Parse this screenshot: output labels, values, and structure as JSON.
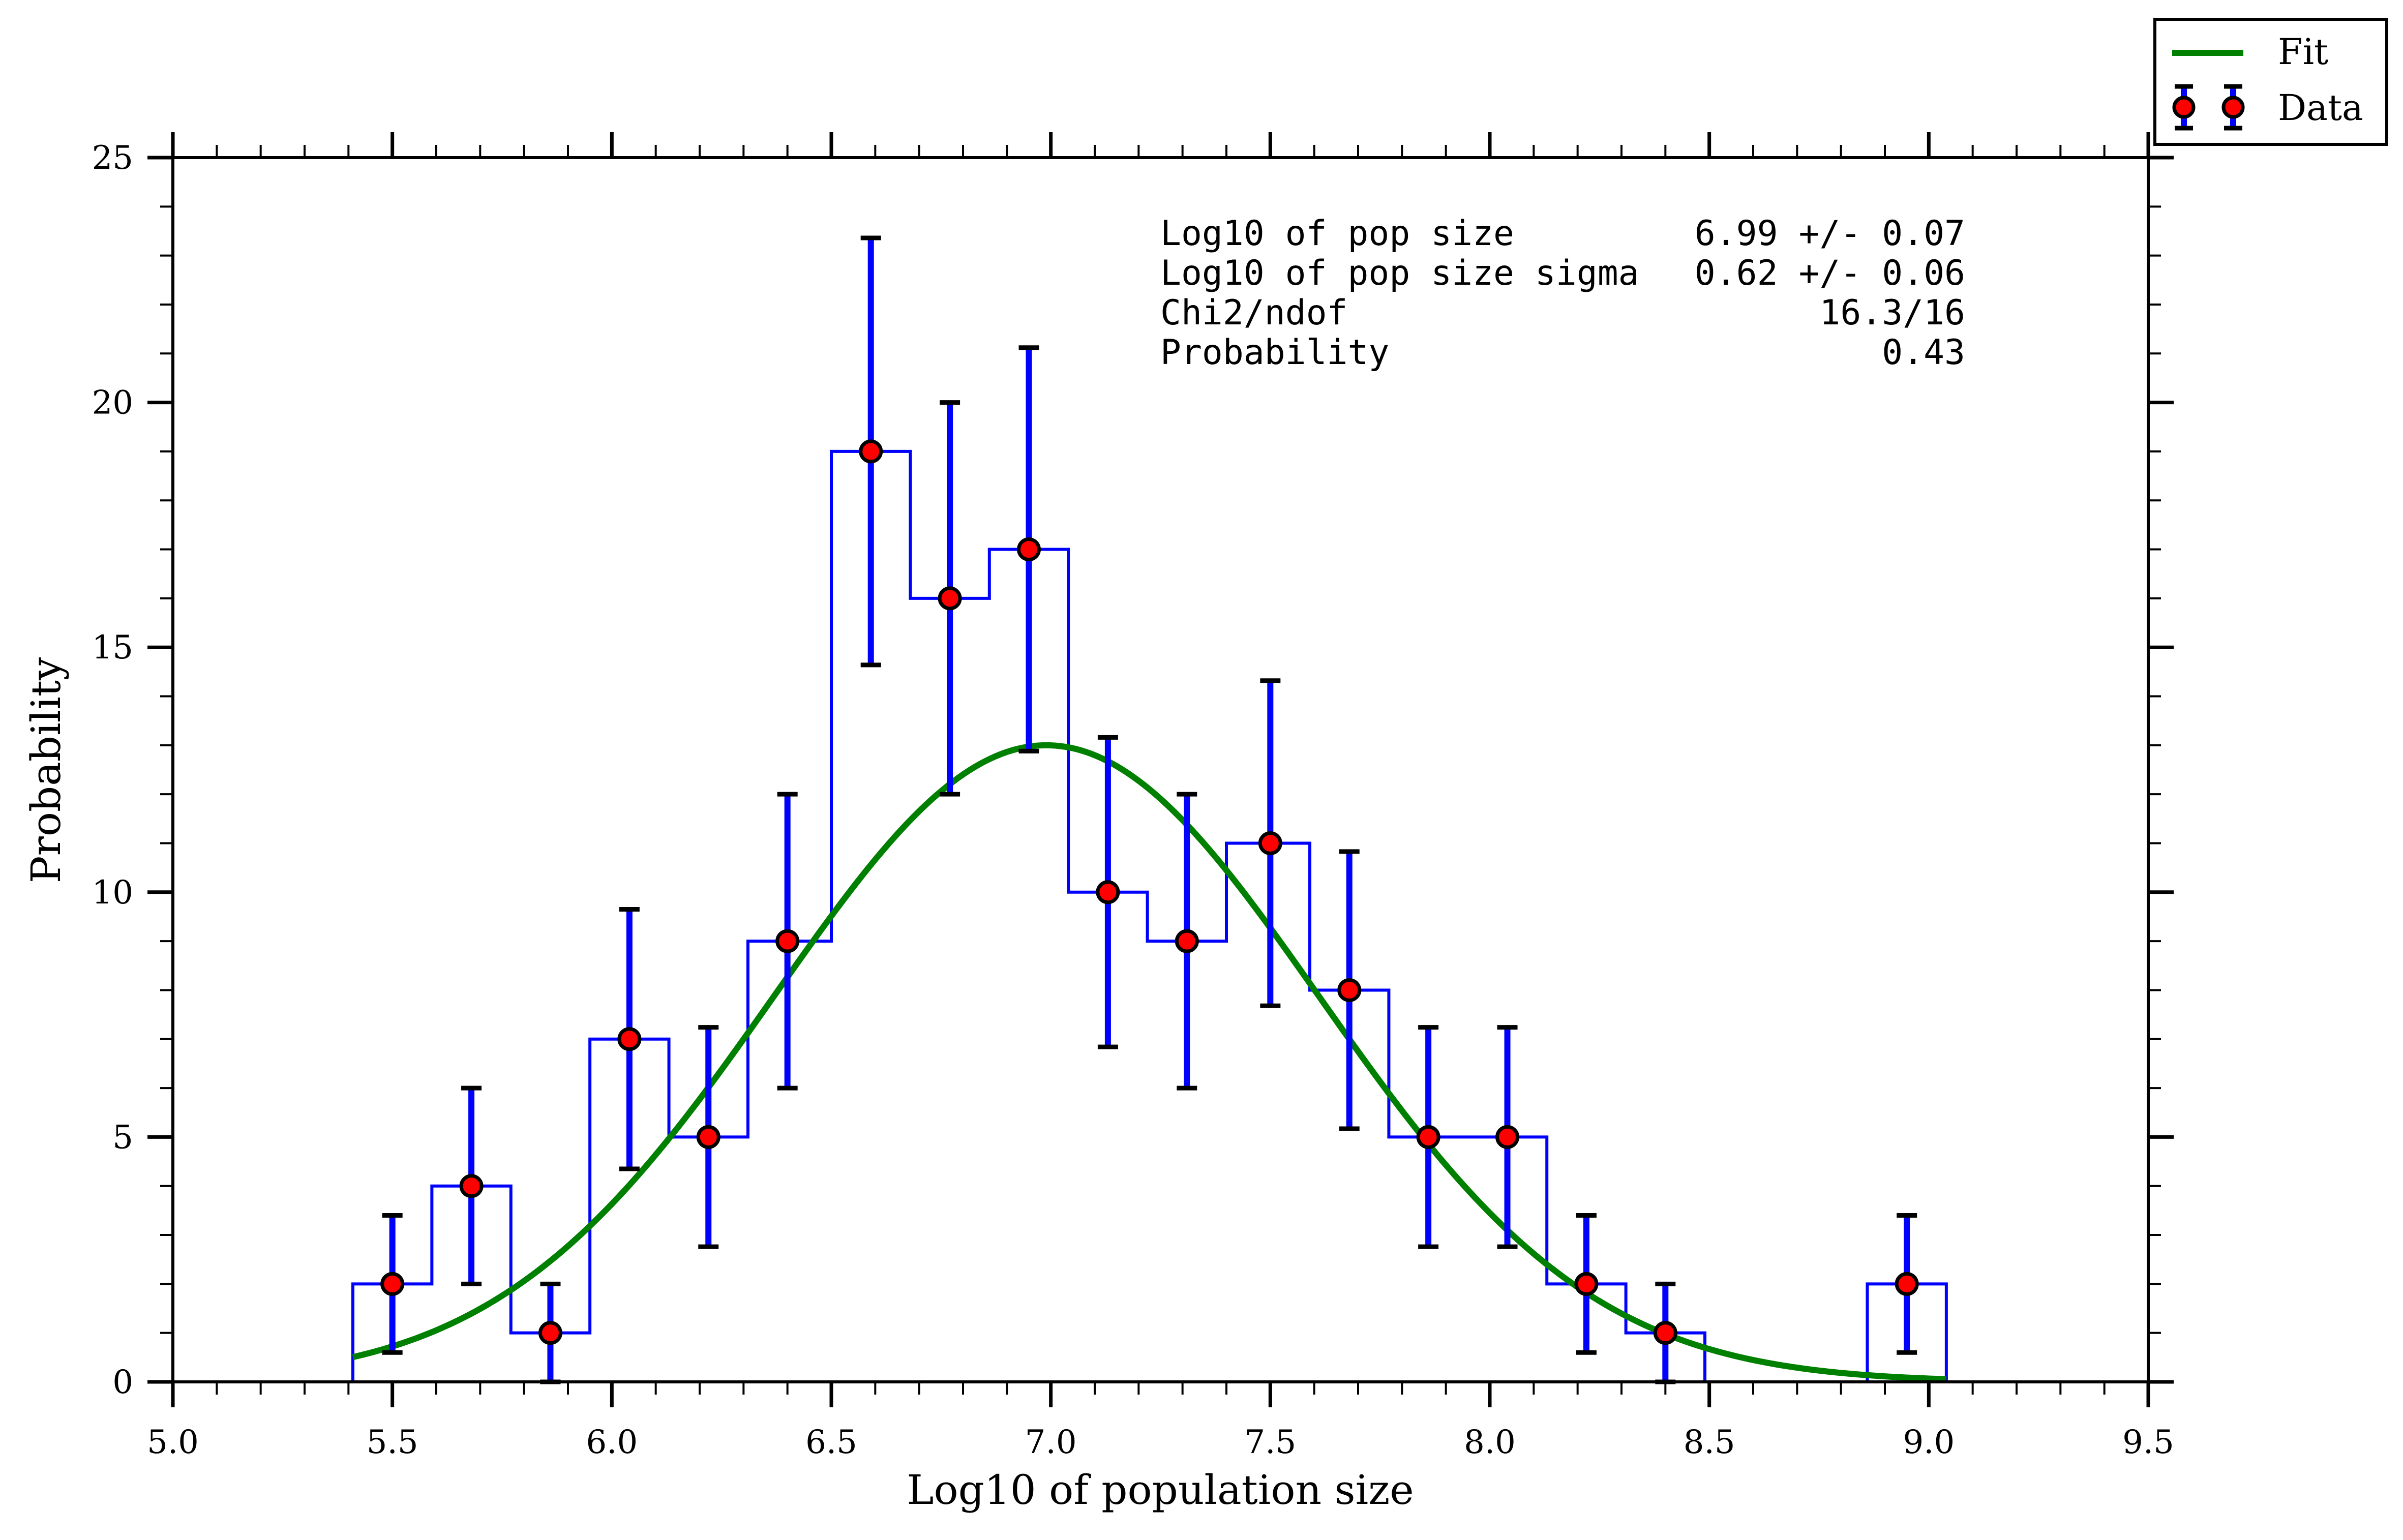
{
  "chart_data": {
    "type": "histogram",
    "xlabel": "Log10 of population size",
    "ylabel": "Probability",
    "xlim": [
      5.0,
      9.5
    ],
    "ylim": [
      0,
      25
    ],
    "x_ticks": [
      "5.0",
      "5.5",
      "6.0",
      "6.5",
      "7.0",
      "7.5",
      "8.0",
      "8.5",
      "9.0",
      "9.5"
    ],
    "y_ticks": [
      "0",
      "5",
      "10",
      "15",
      "20",
      "25"
    ],
    "legend": {
      "placement": "top-right",
      "entries": [
        {
          "label": "Fit",
          "kind": "line",
          "color": "#008000"
        },
        {
          "label": "Data",
          "kind": "errorbar-point",
          "color": "#ff0000"
        }
      ]
    },
    "histogram": {
      "color": "#0000ff",
      "bin_edges": [
        5.41,
        5.59,
        5.77,
        5.95,
        6.13,
        6.31,
        6.5,
        6.68,
        6.86,
        7.04,
        7.22,
        7.4,
        7.59,
        7.77,
        7.95,
        8.13,
        8.31,
        8.49,
        8.67,
        8.86,
        9.04
      ],
      "counts": [
        2,
        4,
        1,
        7,
        5,
        9,
        19,
        16,
        17,
        10,
        9,
        11,
        8,
        5,
        5,
        2,
        1,
        0,
        0,
        2
      ]
    },
    "data_points": {
      "marker_color": "#ff0000",
      "errorbar_color": "#0000ff",
      "cap_color": "#000000",
      "points": [
        {
          "x": 5.5,
          "y": 2,
          "lo": 0.6,
          "hi": 3.4
        },
        {
          "x": 5.68,
          "y": 4,
          "lo": 2.0,
          "hi": 6.0
        },
        {
          "x": 5.86,
          "y": 1,
          "lo": 0.0,
          "hi": 2.0
        },
        {
          "x": 6.04,
          "y": 7,
          "lo": 4.35,
          "hi": 9.65
        },
        {
          "x": 6.22,
          "y": 5,
          "lo": 2.76,
          "hi": 7.24
        },
        {
          "x": 6.4,
          "y": 9,
          "lo": 6.0,
          "hi": 12.0
        },
        {
          "x": 6.59,
          "y": 19,
          "lo": 14.64,
          "hi": 23.36
        },
        {
          "x": 6.77,
          "y": 16,
          "lo": 12.0,
          "hi": 20.0
        },
        {
          "x": 6.95,
          "y": 17,
          "lo": 12.88,
          "hi": 21.12
        },
        {
          "x": 7.13,
          "y": 10,
          "lo": 6.84,
          "hi": 13.16
        },
        {
          "x": 7.31,
          "y": 9,
          "lo": 6.0,
          "hi": 12.0
        },
        {
          "x": 7.5,
          "y": 11,
          "lo": 7.68,
          "hi": 14.32
        },
        {
          "x": 7.68,
          "y": 8,
          "lo": 5.17,
          "hi": 10.83
        },
        {
          "x": 7.86,
          "y": 5,
          "lo": 2.76,
          "hi": 7.24
        },
        {
          "x": 8.04,
          "y": 5,
          "lo": 2.76,
          "hi": 7.24
        },
        {
          "x": 8.22,
          "y": 2,
          "lo": 0.6,
          "hi": 3.4
        },
        {
          "x": 8.4,
          "y": 1,
          "lo": 0.0,
          "hi": 2.0
        },
        {
          "x": 8.95,
          "y": 2,
          "lo": 0.6,
          "hi": 3.4
        }
      ]
    },
    "fit": {
      "color": "#008000",
      "model": "gaussian",
      "amplitude": 13.0,
      "mean": 6.99,
      "sigma": 0.62,
      "x_range": [
        5.41,
        9.04
      ]
    },
    "annotation": {
      "rows": [
        {
          "label": "Log10 of pop size",
          "value": "6.99 +/- 0.07"
        },
        {
          "label": "Log10 of pop size sigma",
          "value": "0.62 +/- 0.06"
        },
        {
          "label": "Chi2/ndof",
          "value": "16.3/16"
        },
        {
          "label": "Probability",
          "value": "0.43"
        }
      ]
    }
  }
}
